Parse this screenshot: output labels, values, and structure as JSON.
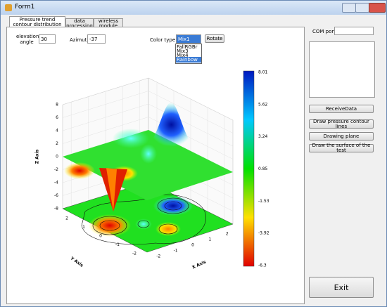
{
  "window": {
    "title": "Form1"
  },
  "tabs": [
    "Pressure trend contour distribution",
    "data processing",
    "wireless module debugging"
  ],
  "controls": {
    "elevation_label": "elevation angle",
    "elevation_value": "30",
    "azimuth_label": "Azimuth",
    "azimuth_value": "-37",
    "color_type_label": "Color type",
    "color_type_value": "Mix1",
    "color_options": [
      "FallRGBr",
      "Mix3",
      "Mix4",
      "Rainbow"
    ],
    "rotate": "Rotate"
  },
  "plot": {
    "z_axis": "Z Axis",
    "y_axis": "Y Axis",
    "x_axis": "X Axis",
    "z_ticks": [
      "8",
      "6",
      "4",
      "2",
      "0",
      "-2",
      "-4",
      "-6",
      "-8"
    ],
    "y_ticks": [
      "2",
      "1",
      "0",
      "-1",
      "-2"
    ],
    "x_ticks": [
      "-2",
      "-1",
      "0",
      "1",
      "2"
    ],
    "colorbar_labels": [
      "8.01",
      "5.62",
      "3.24",
      "0.85",
      "-1.53",
      "-3.92",
      "-6.3"
    ]
  },
  "side": {
    "com_port": "COM port",
    "buttons": [
      "ReceiveData",
      "Draw pressure contour lines",
      "Drawing plane",
      "Draw the surface of the test"
    ],
    "exit": "Exit"
  }
}
